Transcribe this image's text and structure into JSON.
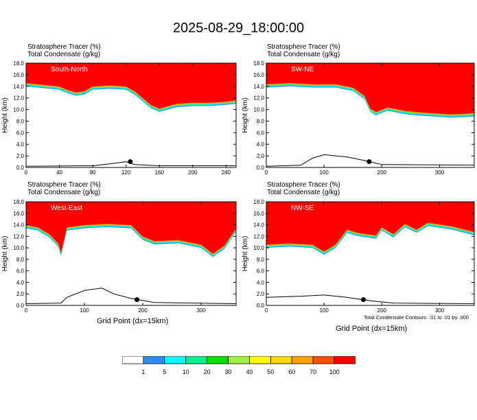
{
  "title": "2025-08-29_18:00:00",
  "panel_header": {
    "line1": "Stratosphere Tracer   (%)",
    "line2": "Total Condensate   (g/kg)"
  },
  "x_axis_title": "Grid Point (dx=15km)",
  "footnote": "Total Condensate Contours: .01 to .01 by .000",
  "colorbar": {
    "colors": [
      "#ffffff",
      "#2e8ef0",
      "#00ffff",
      "#00f08c",
      "#00e000",
      "#a0f040",
      "#ffff00",
      "#ffd700",
      "#ffa000",
      "#ff5000",
      "#ff0000"
    ],
    "labels": [
      "1",
      "5",
      "10",
      "20",
      "30",
      "40",
      "50",
      "60",
      "70",
      "100"
    ]
  },
  "chart_data": [
    {
      "type": "heatmap",
      "panel": "South-North",
      "ylabel": "Height (km)",
      "xlim": [
        0,
        252
      ],
      "ylim": [
        0,
        18
      ],
      "xticks": [
        "0",
        "40",
        "80",
        "120",
        "160",
        "200",
        "240"
      ],
      "yticks": [
        "0.0",
        "2.0",
        "4.0",
        "6.0",
        "8.0",
        "10.0",
        "12.0",
        "14.0",
        "16.0",
        "18.0"
      ],
      "tracer_top_km": [
        [
          0,
          14.6
        ],
        [
          20,
          14.3
        ],
        [
          40,
          14.0
        ],
        [
          50,
          13.4
        ],
        [
          60,
          13.0
        ],
        [
          70,
          13.2
        ],
        [
          80,
          14.0
        ],
        [
          100,
          14.2
        ],
        [
          120,
          14.0
        ],
        [
          130,
          13.2
        ],
        [
          140,
          12.0
        ],
        [
          150,
          10.8
        ],
        [
          160,
          10.2
        ],
        [
          170,
          10.6
        ],
        [
          180,
          11.0
        ],
        [
          200,
          11.2
        ],
        [
          220,
          11.2
        ],
        [
          240,
          11.4
        ],
        [
          252,
          11.6
        ]
      ],
      "terrain_km": [
        [
          0,
          0.2
        ],
        [
          80,
          0.3
        ],
        [
          100,
          0.6
        ],
        [
          120,
          1.0
        ],
        [
          130,
          0.5
        ],
        [
          160,
          0.3
        ],
        [
          252,
          0.3
        ]
      ],
      "marker": {
        "x": 125,
        "y_km": 1.0
      }
    },
    {
      "type": "heatmap",
      "panel": "SW-NE",
      "ylabel": "Height (km)",
      "xlim": [
        0,
        360
      ],
      "ylim": [
        0,
        18
      ],
      "xticks": [
        "0",
        "100",
        "200",
        "300"
      ],
      "yticks": [
        "0.0",
        "2.0",
        "4.0",
        "6.0",
        "8.0",
        "10.0",
        "12.0",
        "14.0",
        "16.0",
        "18.0"
      ],
      "tracer_top_km": [
        [
          0,
          14.4
        ],
        [
          40,
          14.6
        ],
        [
          80,
          14.4
        ],
        [
          120,
          14.4
        ],
        [
          150,
          13.8
        ],
        [
          170,
          12.4
        ],
        [
          180,
          10.2
        ],
        [
          190,
          9.6
        ],
        [
          210,
          10.4
        ],
        [
          240,
          9.8
        ],
        [
          260,
          9.6
        ],
        [
          290,
          9.4
        ],
        [
          320,
          9.2
        ],
        [
          360,
          9.4
        ]
      ],
      "terrain_km": [
        [
          0,
          0.2
        ],
        [
          60,
          0.4
        ],
        [
          80,
          1.6
        ],
        [
          100,
          2.2
        ],
        [
          140,
          1.8
        ],
        [
          170,
          1.2
        ],
        [
          200,
          0.5
        ],
        [
          360,
          0.4
        ]
      ],
      "marker": {
        "x": 178,
        "y_km": 1.0
      }
    },
    {
      "type": "heatmap",
      "panel": "West-East",
      "ylabel": "Height (km)",
      "xlim": [
        0,
        360
      ],
      "ylim": [
        0,
        18
      ],
      "xticks": [
        "0",
        "100",
        "200",
        "300"
      ],
      "yticks": [
        "0.0",
        "2.0",
        "4.0",
        "6.0",
        "8.0",
        "10.0",
        "12.0",
        "14.0",
        "16.0",
        "18.0"
      ],
      "tracer_top_km": [
        [
          0,
          14.0
        ],
        [
          20,
          13.6
        ],
        [
          40,
          12.4
        ],
        [
          55,
          10.8
        ],
        [
          60,
          9.2
        ],
        [
          70,
          13.6
        ],
        [
          100,
          14.0
        ],
        [
          140,
          14.2
        ],
        [
          180,
          14.0
        ],
        [
          200,
          12.0
        ],
        [
          220,
          11.2
        ],
        [
          260,
          11.4
        ],
        [
          300,
          10.6
        ],
        [
          320,
          9.0
        ],
        [
          340,
          10.4
        ],
        [
          360,
          13.4
        ]
      ],
      "terrain_km": [
        [
          0,
          0.3
        ],
        [
          60,
          0.4
        ],
        [
          70,
          1.4
        ],
        [
          100,
          2.6
        ],
        [
          130,
          3.0
        ],
        [
          150,
          2.0
        ],
        [
          180,
          1.2
        ],
        [
          220,
          0.5
        ],
        [
          360,
          0.3
        ]
      ],
      "marker": {
        "x": 190,
        "y_km": 1.0
      }
    },
    {
      "type": "heatmap",
      "panel": "NW-SE",
      "ylabel": "Height (km)",
      "xlim": [
        0,
        360
      ],
      "ylim": [
        0,
        18
      ],
      "xticks": [
        "0",
        "100",
        "200",
        "300"
      ],
      "yticks": [
        "0.0",
        "2.0",
        "4.0",
        "6.0",
        "8.0",
        "10.0",
        "12.0",
        "14.0",
        "16.0",
        "18.0"
      ],
      "tracer_top_km": [
        [
          0,
          10.6
        ],
        [
          40,
          10.8
        ],
        [
          80,
          10.6
        ],
        [
          100,
          9.4
        ],
        [
          120,
          10.6
        ],
        [
          140,
          13.2
        ],
        [
          160,
          12.6
        ],
        [
          190,
          12.2
        ],
        [
          200,
          13.6
        ],
        [
          220,
          12.4
        ],
        [
          240,
          14.2
        ],
        [
          260,
          13.2
        ],
        [
          280,
          14.4
        ],
        [
          320,
          13.8
        ],
        [
          360,
          12.8
        ]
      ],
      "terrain_km": [
        [
          0,
          1.4
        ],
        [
          60,
          1.6
        ],
        [
          100,
          1.8
        ],
        [
          140,
          1.4
        ],
        [
          180,
          0.8
        ],
        [
          220,
          0.4
        ],
        [
          360,
          0.3
        ]
      ],
      "marker": {
        "x": 168,
        "y_km": 1.0
      }
    }
  ]
}
